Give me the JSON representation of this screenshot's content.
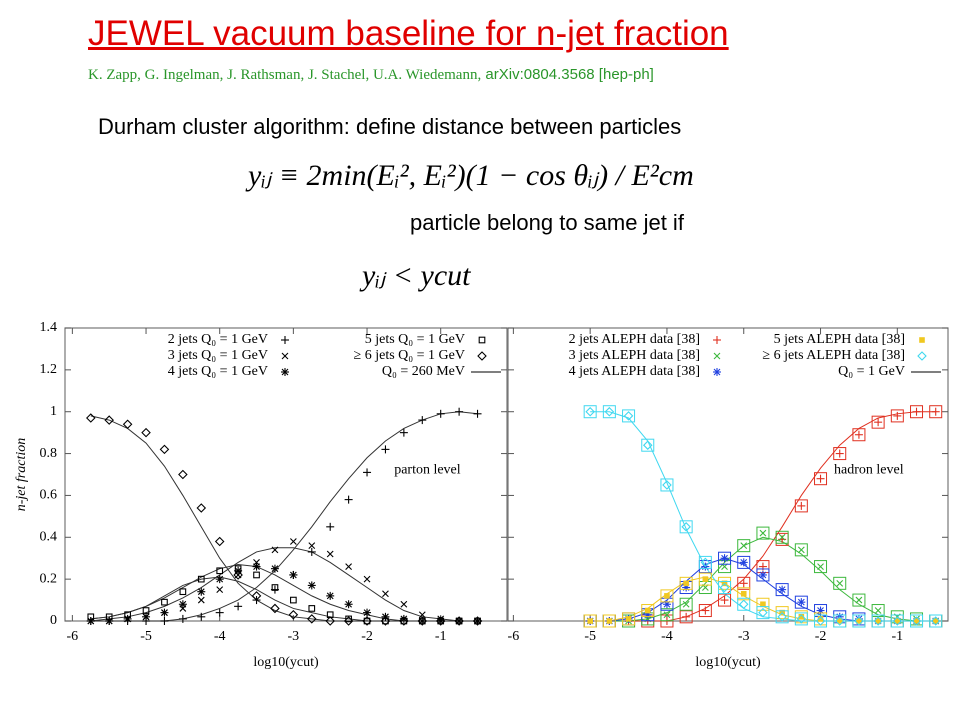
{
  "title": "JEWEL vacuum baseline for n-jet fraction",
  "authors": "K. Zapp, G. Ingelman, J. Rathsman, J. Stachel, U.A. Wiedemann,",
  "reference": "arXiv:0804.3568 [hep-ph]",
  "text1": "Durham cluster algorithm: define distance between particles",
  "equation1": "yᵢⱼ ≡ 2min(Eᵢ², Eᵢ²)(1 − cos θᵢⱼ) / E²cm",
  "text2": "particle belong to same jet if",
  "equation2": "yᵢⱼ < ycut",
  "chart_data": [
    {
      "type": "line",
      "annotation": "parton level",
      "xlabel": "log10(ycut)",
      "ylabel": "n-jet fraction",
      "xlim": [
        -6.1,
        -0.1
      ],
      "ylim": [
        0,
        1.4
      ],
      "xticks": [
        -6,
        -5,
        -4,
        -3,
        -2,
        -1
      ],
      "yticks": [
        0,
        0.2,
        0.4,
        0.6,
        0.8,
        1,
        1.2,
        1.4
      ],
      "x": [
        -5.75,
        -5.5,
        -5.25,
        -5,
        -4.75,
        -4.5,
        -4.25,
        -4,
        -3.75,
        -3.5,
        -3.25,
        -3,
        -2.75,
        -2.5,
        -2.25,
        -2,
        -1.75,
        -1.5,
        -1.25,
        -1,
        -0.75,
        -0.5
      ],
      "series": [
        {
          "name": "2 jets Q₀ = 1 GeV",
          "marker": "plus",
          "color": "#000000",
          "values": [
            0,
            0,
            0,
            0,
            0,
            0.01,
            0.02,
            0.04,
            0.07,
            0.1,
            0.15,
            0.22,
            0.33,
            0.45,
            0.58,
            0.71,
            0.82,
            0.9,
            0.96,
            0.99,
            1.0,
            0.99
          ]
        },
        {
          "name": "3 jets Q₀ = 1 GeV",
          "marker": "cross",
          "color": "#000000",
          "values": [
            0,
            0,
            0.01,
            0.02,
            0.04,
            0.06,
            0.1,
            0.15,
            0.22,
            0.28,
            0.34,
            0.38,
            0.36,
            0.32,
            0.26,
            0.2,
            0.13,
            0.08,
            0.03,
            0.01,
            0,
            0
          ]
        },
        {
          "name": "4 jets Q₀ = 1 GeV",
          "marker": "star",
          "color": "#000000",
          "values": [
            0,
            0,
            0.01,
            0.02,
            0.04,
            0.08,
            0.14,
            0.2,
            0.24,
            0.26,
            0.25,
            0.22,
            0.17,
            0.12,
            0.08,
            0.04,
            0.02,
            0.01,
            0,
            0,
            0,
            0
          ]
        },
        {
          "name": "5 jets Q₀ = 1 GeV",
          "marker": "square",
          "color": "#000000",
          "values": [
            0.02,
            0.02,
            0.03,
            0.05,
            0.09,
            0.14,
            0.2,
            0.24,
            0.25,
            0.22,
            0.16,
            0.1,
            0.06,
            0.03,
            0.01,
            0,
            0,
            0,
            0,
            0,
            0,
            0
          ]
        },
        {
          "name": "≥ 6 jets Q₀ = 1 GeV",
          "marker": "diamond",
          "color": "#000000",
          "values": [
            0.97,
            0.96,
            0.94,
            0.9,
            0.82,
            0.7,
            0.54,
            0.38,
            0.22,
            0.12,
            0.06,
            0.03,
            0.01,
            0,
            0,
            0,
            0,
            0,
            0,
            0,
            0,
            0
          ]
        }
      ],
      "curve": {
        "name": "Q₀ = 260 MeV",
        "color": "#333333",
        "lines": [
          {
            "color": "#333333",
            "values": [
              0,
              0,
              0,
              0,
              0,
              0.01,
              0.03,
              0.06,
              0.1,
              0.16,
              0.24,
              0.34,
              0.45,
              0.57,
              0.68,
              0.78,
              0.86,
              0.92,
              0.96,
              0.99,
              1.0,
              0.99
            ]
          },
          {
            "color": "#333333",
            "values": [
              0,
              0.01,
              0.02,
              0.04,
              0.07,
              0.11,
              0.16,
              0.22,
              0.28,
              0.33,
              0.35,
              0.35,
              0.33,
              0.28,
              0.22,
              0.16,
              0.1,
              0.05,
              0.02,
              0.01,
              0,
              0
            ]
          },
          {
            "color": "#333333",
            "values": [
              0.01,
              0.02,
              0.04,
              0.07,
              0.11,
              0.16,
              0.21,
              0.25,
              0.27,
              0.26,
              0.22,
              0.17,
              0.12,
              0.08,
              0.05,
              0.03,
              0.01,
              0,
              0,
              0,
              0,
              0
            ]
          },
          {
            "color": "#333333",
            "values": [
              0.01,
              0.02,
              0.04,
              0.07,
              0.12,
              0.17,
              0.2,
              0.21,
              0.19,
              0.15,
              0.1,
              0.06,
              0.04,
              0.02,
              0.01,
              0,
              0,
              0,
              0,
              0,
              0,
              0
            ]
          },
          {
            "color": "#333333",
            "values": [
              0.98,
              0.96,
              0.92,
              0.85,
              0.74,
              0.6,
              0.45,
              0.3,
              0.18,
              0.1,
              0.05,
              0.02,
              0.01,
              0,
              0,
              0,
              0,
              0,
              0,
              0,
              0,
              0
            ]
          }
        ]
      }
    },
    {
      "type": "line",
      "annotation": "hadron level",
      "xlabel": "log10(ycut)",
      "boxed": true,
      "xlim": [
        -6.07,
        -0.34
      ],
      "ylim": [
        0,
        1.4
      ],
      "xticks": [
        -6,
        -5,
        -4,
        -3,
        -2,
        -1
      ],
      "yticks": [
        0,
        0.2,
        0.4,
        0.6,
        0.8,
        1,
        1.2,
        1.4
      ],
      "x": [
        -5,
        -4.75,
        -4.5,
        -4.25,
        -4,
        -3.75,
        -3.5,
        -3.25,
        -3,
        -2.75,
        -2.5,
        -2.25,
        -2,
        -1.75,
        -1.5,
        -1.25,
        -1,
        -0.75,
        -0.5
      ],
      "series": [
        {
          "name": "2 jets ALEPH data [38]",
          "marker": "plus",
          "color": "#e03020",
          "values": [
            0,
            0,
            0,
            0,
            0,
            0.02,
            0.05,
            0.1,
            0.18,
            0.26,
            0.39,
            0.55,
            0.68,
            0.8,
            0.89,
            0.95,
            0.98,
            1.0,
            1.0
          ]
        },
        {
          "name": "3 jets ALEPH data [38]",
          "marker": "cross",
          "color": "#3cb83c",
          "values": [
            0,
            0,
            0,
            0.01,
            0.03,
            0.08,
            0.16,
            0.26,
            0.36,
            0.42,
            0.4,
            0.34,
            0.26,
            0.18,
            0.1,
            0.05,
            0.02,
            0.01,
            0
          ]
        },
        {
          "name": "4 jets ALEPH data [38]",
          "marker": "star",
          "color": "#2040e0",
          "values": [
            0,
            0,
            0.01,
            0.03,
            0.08,
            0.16,
            0.26,
            0.3,
            0.28,
            0.22,
            0.15,
            0.09,
            0.05,
            0.02,
            0.01,
            0,
            0,
            0,
            0
          ]
        },
        {
          "name": "5 jets ALEPH data [38]",
          "marker": "filled-square",
          "color": "#f0c820",
          "values": [
            0,
            0,
            0.01,
            0.05,
            0.12,
            0.18,
            0.2,
            0.18,
            0.13,
            0.08,
            0.04,
            0.02,
            0.01,
            0,
            0,
            0,
            0,
            0,
            0
          ]
        },
        {
          "name": "≥ 6 jets ALEPH data [38]",
          "marker": "diamond",
          "color": "#40d8f0",
          "values": [
            1,
            1,
            0.98,
            0.84,
            0.65,
            0.45,
            0.28,
            0.16,
            0.08,
            0.04,
            0.02,
            0.01,
            0,
            0,
            0,
            0,
            0,
            0,
            0
          ]
        }
      ],
      "curve": {
        "name": "Q₀ = 1 GeV",
        "color": "#333333",
        "lines": [
          {
            "color": "#e03020",
            "values": [
              0,
              0,
              0,
              0,
              0,
              0.02,
              0.06,
              0.12,
              0.2,
              0.31,
              0.45,
              0.6,
              0.73,
              0.84,
              0.92,
              0.97,
              0.99,
              1.0,
              1.0
            ]
          },
          {
            "color": "#3cb83c",
            "values": [
              0,
              0,
              0,
              0.01,
              0.04,
              0.09,
              0.18,
              0.28,
              0.36,
              0.4,
              0.38,
              0.32,
              0.24,
              0.15,
              0.08,
              0.03,
              0.01,
              0,
              0
            ]
          },
          {
            "color": "#2040e0",
            "values": [
              0,
              0,
              0.01,
              0.04,
              0.1,
              0.19,
              0.27,
              0.3,
              0.27,
              0.2,
              0.13,
              0.07,
              0.03,
              0.01,
              0,
              0,
              0,
              0,
              0
            ]
          },
          {
            "color": "#f0c820",
            "values": [
              0,
              0,
              0.02,
              0.06,
              0.13,
              0.19,
              0.21,
              0.18,
              0.12,
              0.07,
              0.03,
              0.01,
              0,
              0,
              0,
              0,
              0,
              0,
              0
            ]
          },
          {
            "color": "#40d8f0",
            "values": [
              1,
              1,
              0.97,
              0.86,
              0.66,
              0.44,
              0.26,
              0.13,
              0.06,
              0.02,
              0.01,
              0,
              0,
              0,
              0,
              0,
              0,
              0,
              0
            ]
          }
        ]
      }
    }
  ]
}
